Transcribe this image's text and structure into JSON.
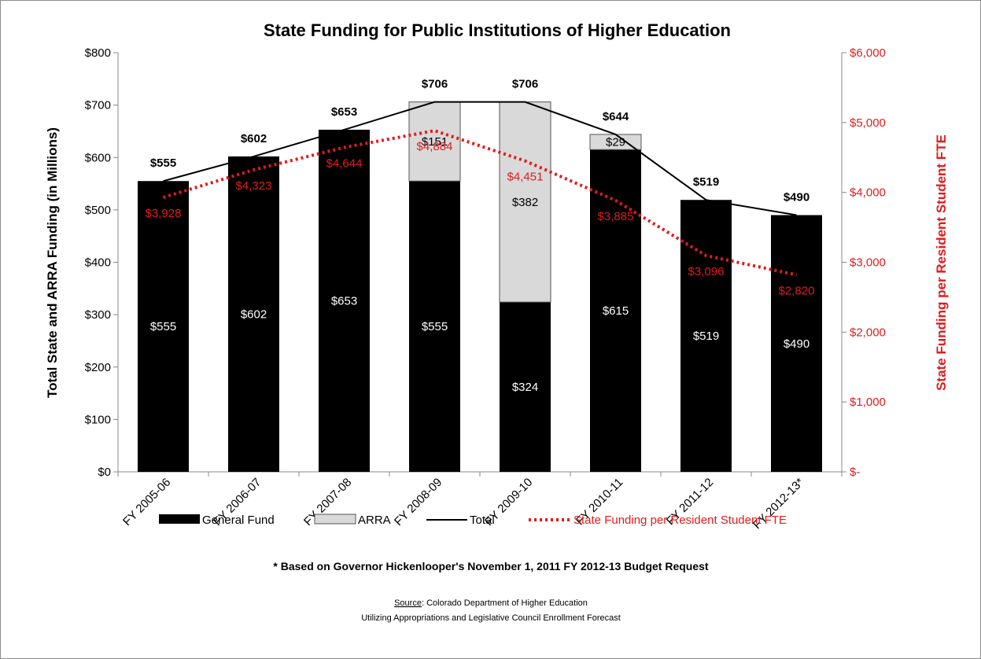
{
  "chart_data": {
    "type": "bar",
    "title": "State Funding for Public Institutions of Higher Education",
    "categories": [
      "FY 2005-06",
      "FY 2006-07",
      "FY 2007-08",
      "FY 2008-09",
      "FY 2009-10",
      "FY 2010-11",
      "FY 2011-12",
      "FY 2012-13*"
    ],
    "series": [
      {
        "name": "General Fund",
        "kind": "stacked-bar",
        "axis": "left",
        "color": "#000000",
        "values": [
          555,
          602,
          653,
          555,
          324,
          615,
          519,
          490
        ],
        "labels": [
          "$555",
          "$602",
          "$653",
          "$555",
          "$324",
          "$615",
          "$519",
          "$490"
        ]
      },
      {
        "name": "ARRA",
        "kind": "stacked-bar",
        "axis": "left",
        "color": "#d9d9d9",
        "values": [
          0,
          0,
          0,
          151,
          382,
          29,
          0,
          0
        ],
        "labels": [
          "",
          "",
          "",
          "$151",
          "$382",
          "$29",
          "",
          ""
        ]
      },
      {
        "name": "Total",
        "kind": "line",
        "axis": "left",
        "color": "#000000",
        "values": [
          555,
          602,
          653,
          706,
          706,
          644,
          519,
          490
        ],
        "labels": [
          "$555",
          "$602",
          "$653",
          "$706",
          "$706",
          "$644",
          "$519",
          "$490"
        ]
      },
      {
        "name": "State Funding per Resident Student FTE",
        "kind": "dotted-line",
        "axis": "right",
        "color": "#e31b1b",
        "values": [
          3928,
          4323,
          4644,
          4884,
          4451,
          3885,
          3096,
          2820
        ],
        "labels": [
          "$3,928",
          "$4,323",
          "$4,644",
          "$4,884",
          "$4,451",
          "$3,885",
          "$3,096",
          "$2,820"
        ]
      }
    ],
    "ylabel": "Total State and ARRA Funding (in Millions)",
    "ylabel_right": "State Funding per Resident Student FTE",
    "ylim": [
      0,
      800
    ],
    "ylim_right": [
      0,
      6000
    ],
    "yticks": [
      "$0",
      "$100",
      "$200",
      "$300",
      "$400",
      "$500",
      "$600",
      "$700",
      "$800"
    ],
    "yticks_right": [
      "$-",
      "$1,000",
      "$2,000",
      "$3,000",
      "$4,000",
      "$5,000",
      "$6,000"
    ],
    "grid": false,
    "legend": "bottom"
  },
  "footnote": "* Based on Governor Hickenlooper's November 1, 2011 FY 2012-13 Budget Request",
  "source_label": "Source",
  "source_text": ": Colorado Department of Higher Education",
  "source_line2": "Utilizing Appropriations and Legislative Council Enrollment Forecast"
}
